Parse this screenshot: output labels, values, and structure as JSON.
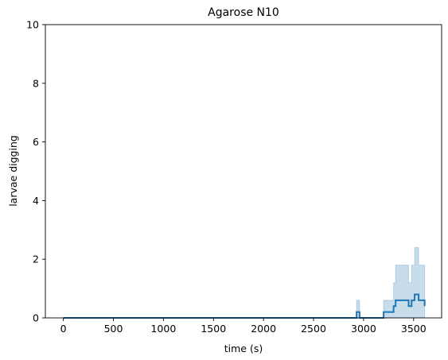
{
  "chart_data": {
    "type": "line",
    "title": "Agarose N10",
    "xlabel": "time (s)",
    "ylabel": "larvae digging",
    "xlim": [
      -180,
      3780
    ],
    "ylim": [
      0,
      10
    ],
    "xticks": [
      0,
      500,
      1000,
      1500,
      2000,
      2500,
      3000,
      3500
    ],
    "yticks": [
      0,
      2,
      4,
      6,
      8,
      10
    ],
    "grid": false,
    "step": true,
    "series": [
      {
        "color": "#1f77b4",
        "x": [
          0,
          2900,
          2930,
          2960,
          3200,
          3300,
          3320,
          3450,
          3480,
          3510,
          3550,
          3610
        ],
        "values": [
          0,
          0,
          0.2,
          0,
          0.2,
          0.4,
          0.6,
          0.4,
          0.6,
          0.8,
          0.6,
          0.4
        ],
        "band_upper": [
          0,
          0,
          0.6,
          0,
          0.6,
          1.2,
          1.8,
          1.2,
          1.8,
          2.4,
          1.8,
          1.2
        ],
        "band_lower": [
          0,
          0,
          0,
          0,
          0,
          0,
          0,
          0,
          0,
          0,
          0,
          0
        ],
        "band_color": "#1f77b4",
        "band_opacity": 0.25
      }
    ]
  }
}
